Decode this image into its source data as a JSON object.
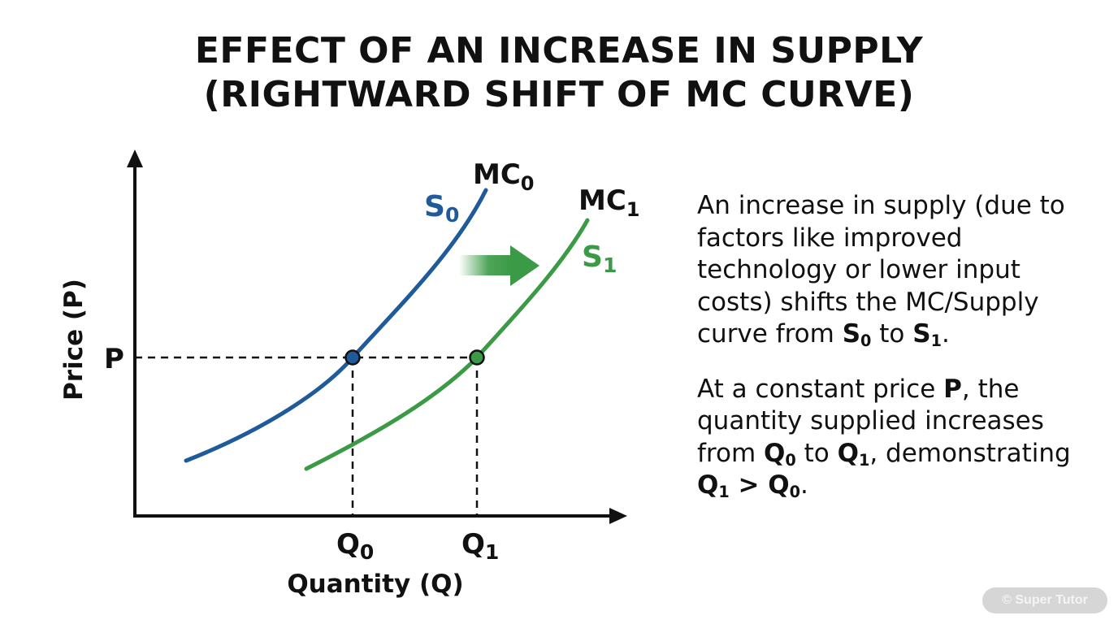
{
  "title": {
    "line1": "EFFECT OF AN INCREASE IN SUPPLY",
    "line2": "(RIGHTWARD SHIFT OF MC CURVE)"
  },
  "axes": {
    "y_label": "Price (P)",
    "x_label": "Quantity (Q)"
  },
  "labels": {
    "price_tick": "P",
    "q0_tick": "Q",
    "q0_sub": "0",
    "q1_tick": "Q",
    "q1_sub": "1",
    "mc0": "MC",
    "mc0_sub": "0",
    "mc1": "MC",
    "mc1_sub": "1",
    "s0": "S",
    "s0_sub": "0",
    "s1": "S",
    "s1_sub": "1"
  },
  "colors": {
    "s0_curve": "#1f5a9a",
    "s1_curve": "#3a9a45",
    "axis": "#111111",
    "arrow_green": "#3a9a45"
  },
  "explanation": {
    "p1_text1": "An increase in supply (due to factors like improved technology or lower input costs) shifts the MC/Supply curve from ",
    "p1_s": "S",
    "p1_s0_sub": "0",
    "p1_to": " to ",
    "p1_s1": "S",
    "p1_s1_sub": "1",
    "p1_end": ".",
    "p2_text1": "At a constant price ",
    "p2_p": "P",
    "p2_text2": ", the quantity supplied increases from ",
    "p2_q0": "Q",
    "p2_q0_sub": "0",
    "p2_to": " to ",
    "p2_q1": "Q",
    "p2_q1_sub": "1",
    "p2_text3": ", demonstrating ",
    "p2_ineq_q1": "Q",
    "p2_ineq_q1_sub": "1",
    "p2_gt": " > ",
    "p2_ineq_q0": "Q",
    "p2_ineq_q0_sub": "0",
    "p2_end": "."
  },
  "watermark": "© Super Tutor"
}
